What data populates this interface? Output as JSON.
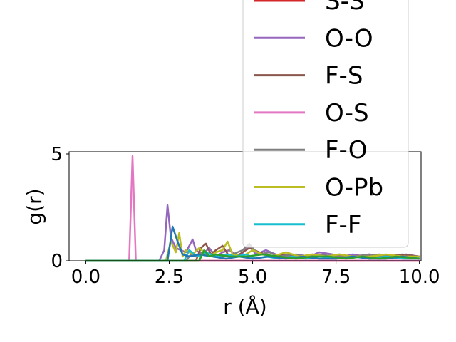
{
  "chart_data": {
    "type": "line",
    "xlabel": "r (Å)",
    "ylabel": "g(r)",
    "xlim": [
      -0.5,
      10.05
    ],
    "ylim": [
      0,
      5.1
    ],
    "xticks": [
      "0.0",
      "2.5",
      "5.0",
      "7.5",
      "10.0"
    ],
    "xtick_values": [
      0,
      2.5,
      5,
      7.5,
      10
    ],
    "yticks": [
      "0",
      "5"
    ],
    "ytick_values": [
      0,
      5
    ],
    "grid": false,
    "legend_position": "upper-right",
    "series": [
      {
        "name": "S-S",
        "color": "#d62728",
        "x": [
          0,
          10
        ],
        "y": [
          0,
          0
        ]
      },
      {
        "name": "O-O",
        "color": "#9467bd",
        "x": [
          0,
          2.2,
          2.35,
          2.45,
          2.55,
          2.7,
          3.0,
          3.2,
          3.3,
          3.5,
          3.7,
          3.9,
          4.1,
          4.3,
          4.6,
          4.9,
          5.1,
          5.4,
          5.7,
          6.0,
          6.3,
          6.7,
          7.0,
          7.4,
          7.7,
          8.0,
          8.4,
          8.8,
          9.2,
          9.6,
          10.0
        ],
        "y": [
          0,
          0,
          0.5,
          2.6,
          1.1,
          0.6,
          0.4,
          1.0,
          0.5,
          0.3,
          0.6,
          0.2,
          0.4,
          0.5,
          0.2,
          0.7,
          0.3,
          0.5,
          0.3,
          0.2,
          0.3,
          0.2,
          0.4,
          0.3,
          0.2,
          0.3,
          0.2,
          0.3,
          0.2,
          0.3,
          0.2
        ]
      },
      {
        "name": "F-S",
        "color": "#8c564b",
        "x": [
          0,
          3.3,
          3.45,
          3.6,
          3.75,
          3.9,
          4.1,
          4.3,
          4.6,
          4.9,
          5.2,
          5.6,
          6.0,
          6.4,
          6.8,
          7.2,
          7.6,
          8.0,
          8.5,
          9.0,
          9.5,
          10.0
        ],
        "y": [
          0,
          0,
          0.6,
          0.8,
          0.3,
          0.5,
          0.7,
          0.2,
          0.3,
          0.6,
          0.4,
          0.2,
          0.3,
          0.2,
          0.3,
          0.2,
          0.3,
          0.2,
          0.3,
          0.2,
          0.3,
          0.2
        ]
      },
      {
        "name": "O-S",
        "color": "#e377c2",
        "x": [
          0,
          1.3,
          1.4,
          1.5,
          1.6,
          10.0
        ],
        "y": [
          0,
          0,
          4.9,
          0,
          0,
          0
        ]
      },
      {
        "name": "F-O",
        "color": "#7f7f7f",
        "x": [
          0,
          3.0,
          3.15,
          3.3,
          3.5,
          3.8,
          4.1,
          4.4,
          4.7,
          4.9,
          5.0,
          5.2,
          5.5,
          5.8,
          6.2,
          6.6,
          7.0,
          7.5,
          8.0,
          8.5,
          9.0,
          9.5,
          10.0
        ],
        "y": [
          0,
          0,
          0.3,
          0.2,
          0.4,
          0.3,
          0.2,
          0.3,
          0.5,
          0.8,
          0.6,
          0.3,
          0.4,
          0.2,
          0.3,
          0.2,
          0.3,
          0.2,
          0.2,
          0.3,
          0.2,
          0.2,
          0.2
        ]
      },
      {
        "name": "O-Pb",
        "color": "#bcbd22",
        "x": [
          0,
          2.4,
          2.55,
          2.7,
          2.8,
          2.9,
          3.0,
          3.2,
          3.4,
          3.7,
          3.9,
          4.1,
          4.25,
          4.4,
          4.7,
          5.0,
          5.3,
          5.6,
          6.0,
          6.4,
          6.8,
          7.2,
          7.6,
          8.0,
          8.5,
          9.0,
          9.5,
          10.0
        ],
        "y": [
          0,
          0,
          0.9,
          0.4,
          1.3,
          0.2,
          0.5,
          0.3,
          0.6,
          0.2,
          0.4,
          0.5,
          0.9,
          0.3,
          0.2,
          0.5,
          0.3,
          0.2,
          0.4,
          0.2,
          0.3,
          0.2,
          0.3,
          0.2,
          0.2,
          0.3,
          0.2,
          0.2
        ]
      },
      {
        "name": "F-F",
        "color": "#17becf",
        "x": [
          0,
          2.95,
          3.1,
          3.25,
          3.4,
          3.6,
          3.9,
          4.2,
          4.5,
          4.8,
          5.1,
          5.4,
          5.8,
          6.2,
          6.6,
          7.0,
          7.5,
          8.0,
          8.5,
          9.0,
          9.5,
          10.0
        ],
        "y": [
          0,
          0,
          0.5,
          0.3,
          0.2,
          0.4,
          0.2,
          0.3,
          0.2,
          0.3,
          0.1,
          0.2,
          0.1,
          0.2,
          0.1,
          0.2,
          0.1,
          0.2,
          0.1,
          0.2,
          0.1,
          0.1
        ]
      },
      {
        "name": "",
        "color": "#1f77b4",
        "x": [
          0,
          2.45,
          2.6,
          2.75,
          2.9,
          3.1,
          3.4,
          3.8,
          4.2,
          4.6,
          5.0,
          5.5,
          6.0,
          6.5,
          7.0,
          7.5,
          8.0,
          8.5,
          9.0,
          9.5,
          10.0
        ],
        "y": [
          0,
          0,
          1.6,
          0.9,
          0.3,
          0.2,
          0.3,
          0.2,
          0.1,
          0.2,
          0.1,
          0.2,
          0.1,
          0.2,
          0.1,
          0.1,
          0.2,
          0.1,
          0.1,
          0.2,
          0.1
        ]
      },
      {
        "name": "",
        "color": "#2ca02c",
        "x": [
          0,
          3.4,
          3.55,
          3.7,
          3.9,
          4.3,
          4.8,
          5.3,
          5.8,
          6.3,
          6.8,
          7.3,
          7.8,
          8.3,
          8.8,
          9.3,
          10.0
        ],
        "y": [
          0,
          0,
          0.5,
          0.2,
          0.3,
          0.2,
          0.2,
          0.3,
          0.2,
          0.1,
          0.2,
          0.2,
          0.1,
          0.2,
          0.1,
          0.2,
          0.1
        ]
      }
    ],
    "legend_entries": [
      "S-S",
      "O-O",
      "F-S",
      "O-S",
      "F-O",
      "O-Pb",
      "F-F"
    ]
  }
}
